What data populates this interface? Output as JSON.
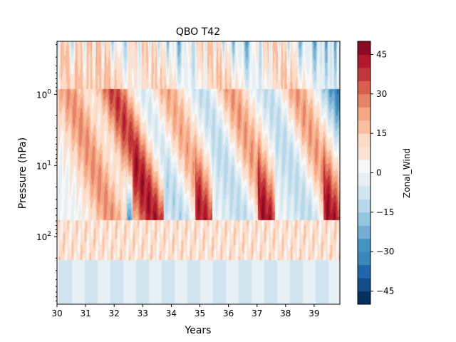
{
  "chart_data": {
    "type": "heatmap",
    "title": "QBO T42",
    "xlabel": "Years",
    "ylabel": "Pressure (hPa)",
    "xlim": [
      30,
      39.9
    ],
    "x_ticks": [
      30,
      31,
      32,
      33,
      34,
      35,
      36,
      37,
      38,
      39
    ],
    "y_scale": "log",
    "y_inverted": true,
    "ylim_hpa": [
      0.18,
      890
    ],
    "y_ticks": [
      {
        "base": "10",
        "exp": "0",
        "value": 1
      },
      {
        "base": "10",
        "exp": "1",
        "value": 10
      },
      {
        "base": "10",
        "exp": "2",
        "value": 100
      }
    ],
    "colorbar": {
      "label": "Zonal_Wind",
      "levels": [
        -50,
        -45,
        -40,
        -35,
        -30,
        -25,
        -20,
        -15,
        -10,
        -5,
        0,
        5,
        10,
        15,
        20,
        25,
        30,
        35,
        40,
        45,
        50
      ],
      "tick_labels": [
        "45",
        "30",
        "15",
        "0",
        "−15",
        "−30",
        "−45"
      ],
      "tick_values": [
        45,
        30,
        15,
        0,
        -15,
        -30,
        -45
      ],
      "colors": [
        "#053061",
        "#134c87",
        "#2166ac",
        "#3a87bd",
        "#4393c3",
        "#74add1",
        "#92c5de",
        "#b8d8e9",
        "#d1e5f0",
        "#e6eff4",
        "#f7f7f7",
        "#fbe3d4",
        "#fddbc7",
        "#f9bd9f",
        "#f4a582",
        "#e58267",
        "#d6604d",
        "#c13639",
        "#b2182b",
        "#8a0b24"
      ]
    },
    "grid": false,
    "field_description": "Descending alternating easterly/westerly zonal wind regimes with ~28-month period",
    "westerly_phases": [
      {
        "start_year": 30.0,
        "peak_u": 42
      },
      {
        "start_year": 31.3,
        "peak_u": 42
      },
      {
        "start_year": 33.0,
        "peak_u": 40
      },
      {
        "start_year": 35.2,
        "peak_u": 42
      },
      {
        "start_year": 37.5,
        "peak_u": 42
      }
    ],
    "easterly_phases": [
      {
        "start_year": 30.2,
        "peak_u": -35
      },
      {
        "start_year": 32.4,
        "peak_u": -35
      },
      {
        "start_year": 34.6,
        "peak_u": -35
      },
      {
        "start_year": 36.9,
        "peak_u": -35
      },
      {
        "start_year": 39.1,
        "peak_u": -35
      }
    ],
    "lower_troposphere_u": -5
  }
}
